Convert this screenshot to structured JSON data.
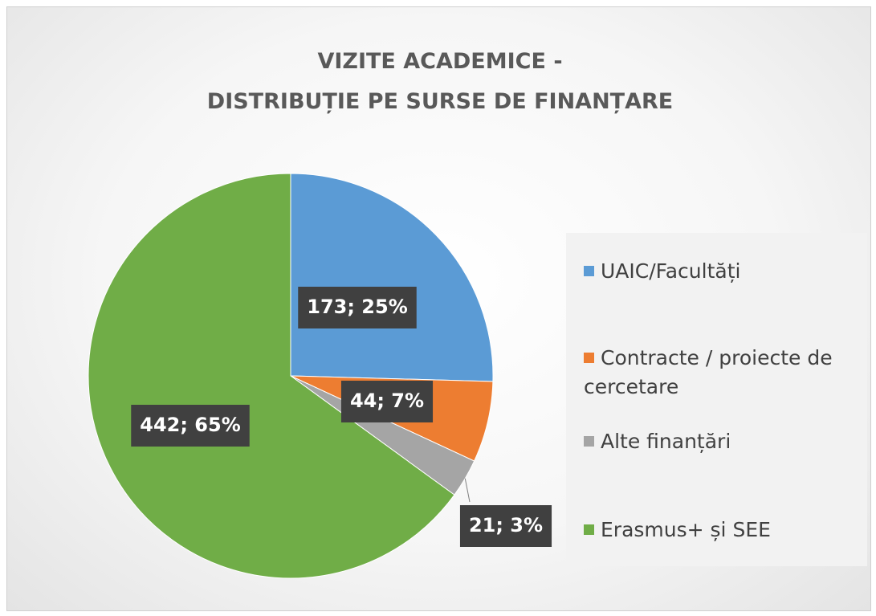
{
  "chart_data": {
    "type": "pie",
    "title": [
      "VIZITE ACADEMICE  -",
      "DISTRIBUȚIE  PE SURSE  DE FINANȚARE"
    ],
    "categories": [
      "UAIC/Facultăți",
      "Contracte / proiecte de cercetare",
      "Alte finanțări",
      "Erasmus+ și SEE"
    ],
    "values": [
      173,
      44,
      21,
      442
    ],
    "value_labels": [
      "173; 25%",
      "44; 7%",
      "21; 3%",
      "442; 65%"
    ],
    "colors": [
      "#5b9bd5",
      "#ed7d31",
      "#a5a5a5",
      "#70ad47"
    ],
    "legend": "right"
  }
}
